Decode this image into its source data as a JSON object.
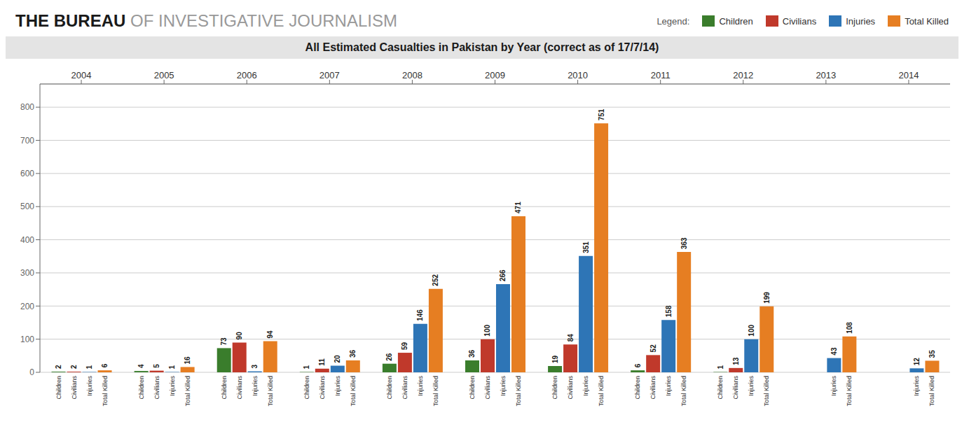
{
  "chart_data": {
    "type": "bar",
    "title": "All Estimated Casualties in Pakistan by Year (correct as of 17/7/14)",
    "annotations": [
      "THE BUREAU",
      "OF INVESTIGATIVE JOURNALISM",
      "Legend:"
    ],
    "categories": [
      "2004",
      "2005",
      "2006",
      "2007",
      "2008",
      "2009",
      "2010",
      "2011",
      "2012",
      "2013",
      "2014"
    ],
    "series": [
      {
        "name": "Children",
        "color": "#3a7d2c",
        "values": [
          2,
          4,
          73,
          1,
          26,
          36,
          19,
          6,
          1,
          0,
          0
        ],
        "value_labels": [
          "2",
          "4",
          "73",
          "1",
          "26",
          "36",
          "19",
          "6",
          "1",
          null,
          null
        ]
      },
      {
        "name": "Civilians",
        "color": "#c0392b",
        "values": [
          2,
          5,
          90,
          11,
          59,
          100,
          84,
          52,
          13,
          0,
          0
        ],
        "value_labels": [
          "2",
          "5",
          "90",
          "11",
          "59",
          "100",
          "84",
          "52",
          "13",
          null,
          null
        ]
      },
      {
        "name": "Injuries",
        "color": "#2e75b6",
        "values": [
          1,
          1,
          3,
          20,
          146,
          266,
          351,
          158,
          100,
          43,
          12
        ]
      },
      {
        "name": "Total Killed",
        "color": "#e67e22",
        "values": [
          6,
          16,
          94,
          36,
          252,
          471,
          751,
          363,
          199,
          108,
          35
        ]
      }
    ],
    "ylim": [
      0,
      870
    ],
    "yticks": [
      0,
      100,
      200,
      300,
      400,
      500,
      600,
      700,
      800
    ],
    "grid": true,
    "legend": "top",
    "data_labels": true
  }
}
